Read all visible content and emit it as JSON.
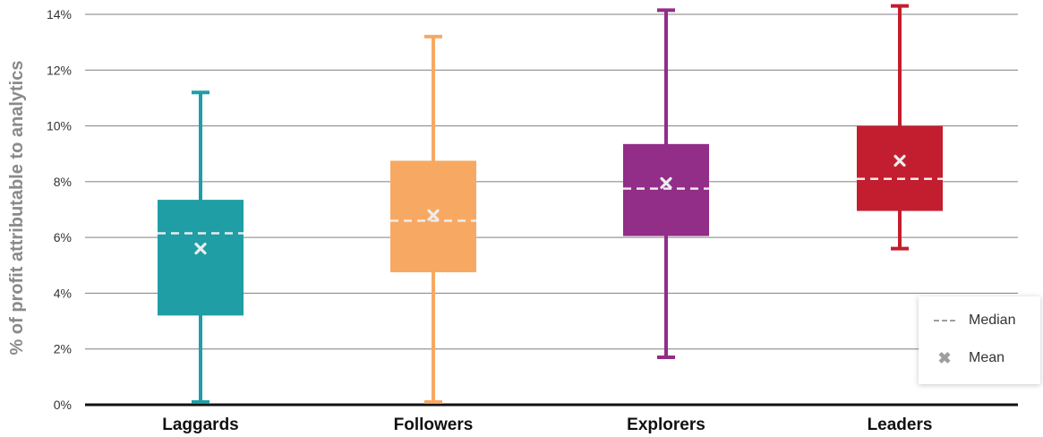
{
  "chart_data": {
    "type": "box",
    "ylabel": "% of profit attributable to analytics",
    "ylim": [
      0,
      14
    ],
    "yticks": [
      0,
      2,
      4,
      6,
      8,
      10,
      12,
      14
    ],
    "ytick_labels": [
      "0%",
      "2%",
      "4%",
      "6%",
      "8%",
      "10%",
      "12%",
      "14%"
    ],
    "grid": true,
    "legend_position": "bottom-right",
    "legend": [
      {
        "label": "Median",
        "symbol": "dashed-line"
      },
      {
        "label": "Mean",
        "symbol": "x-marker"
      }
    ],
    "categories": [
      "Laggards",
      "Followers",
      "Explorers",
      "Leaders"
    ],
    "series": [
      {
        "category": "Laggards",
        "color": "#1f9ea6",
        "min": 0.1,
        "q1": 3.2,
        "median": 6.15,
        "q3": 7.35,
        "max": 11.2,
        "mean": 5.6
      },
      {
        "category": "Followers",
        "color": "#f7a963",
        "min": 0.1,
        "q1": 4.75,
        "median": 6.6,
        "q3": 8.75,
        "max": 13.2,
        "mean": 6.8
      },
      {
        "category": "Explorers",
        "color": "#922d88",
        "min": 1.7,
        "q1": 6.05,
        "median": 7.75,
        "q3": 9.35,
        "max": 14.15,
        "mean": 7.95
      },
      {
        "category": "Leaders",
        "color": "#c21e2f",
        "min": 5.6,
        "q1": 6.95,
        "median": 8.1,
        "q3": 10.0,
        "max": 14.3,
        "mean": 8.75
      }
    ]
  }
}
